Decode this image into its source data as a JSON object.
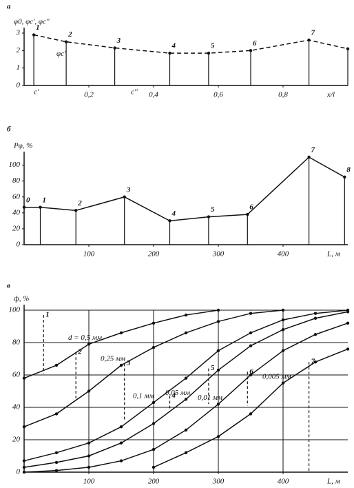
{
  "chart_data": [
    {
      "type": "line",
      "title": "а",
      "ylabel": "φ0, φc', φc''",
      "xlabel": "x/l",
      "xlim": [
        0,
        1
      ],
      "ylim": [
        0,
        3
      ],
      "xticks": [
        {
          "value": 0.2,
          "label": "0,2"
        },
        {
          "value": 0.4,
          "label": "0,4"
        },
        {
          "value": 0.6,
          "label": "0,6"
        },
        {
          "value": 0.8,
          "label": "0,8"
        }
      ],
      "yticks": [
        0,
        1,
        2,
        3
      ],
      "grid": false,
      "stems": true,
      "x": [
        0.03,
        0.13,
        0.28,
        0.45,
        0.57,
        0.7,
        0.88,
        1.0
      ],
      "point_labels": [
        "1",
        "2",
        "3",
        "4",
        "5",
        "6",
        "7",
        null
      ],
      "series": [
        {
          "name": "φ0",
          "color": "#111111",
          "dash": true,
          "values": [
            2.9,
            2.5,
            2.15,
            1.85,
            1.85,
            2.0,
            2.6,
            2.1
          ]
        }
      ],
      "annotations": [
        {
          "text": "c'",
          "x": 0.03,
          "y": -0.4
        },
        {
          "text": "c''",
          "x": 0.33,
          "y": -0.4
        },
        {
          "text": "φc'",
          "x": 0.1,
          "y": 1.8
        }
      ]
    },
    {
      "type": "line",
      "title": "б",
      "ylabel": "Pφ, %",
      "xlabel": "L, м",
      "xlim": [
        0,
        500
      ],
      "ylim": [
        0,
        110
      ],
      "xticks": [
        100,
        200,
        300,
        400
      ],
      "yticks": [
        0,
        20,
        40,
        60,
        80,
        100
      ],
      "grid": false,
      "stems": true,
      "x": [
        0,
        25,
        80,
        155,
        225,
        285,
        345,
        440,
        495
      ],
      "point_labels": [
        "0",
        "1",
        "2",
        "3",
        "4",
        "5",
        "6",
        "7",
        "8"
      ],
      "series": [
        {
          "name": "Pφ",
          "color": "#111111",
          "dash": false,
          "values": [
            47,
            47,
            43,
            60,
            30,
            35,
            38,
            110,
            85
          ]
        }
      ]
    },
    {
      "type": "line",
      "title": "в",
      "ylabel": "ф, %",
      "xlabel": "L, м",
      "xlim": [
        0,
        500
      ],
      "ylim": [
        0,
        100
      ],
      "xticks": [
        100,
        200,
        300,
        400
      ],
      "yticks": [
        0,
        20,
        40,
        60,
        80,
        100
      ],
      "grid": true,
      "stems": false,
      "x": [
        0,
        50,
        100,
        150,
        200,
        250,
        300,
        350,
        400,
        450,
        500
      ],
      "series": [
        {
          "name": "d = 0,5 мм",
          "color": "#111111",
          "dash": false,
          "values": [
            58,
            66,
            79,
            86,
            92,
            97,
            100,
            null,
            null,
            null,
            null
          ]
        },
        {
          "name": "0,25 мм",
          "color": "#111111",
          "dash": false,
          "values": [
            28,
            36,
            50,
            66,
            77,
            86,
            93,
            98,
            100,
            null,
            null
          ]
        },
        {
          "name": "0,1 мм",
          "color": "#111111",
          "dash": false,
          "values": [
            7,
            12,
            18,
            28,
            43,
            58,
            75,
            86,
            94,
            98,
            100
          ]
        },
        {
          "name": "0,05 мм",
          "color": "#111111",
          "dash": false,
          "values": [
            3,
            6,
            10,
            18,
            30,
            45,
            63,
            78,
            88,
            95,
            99
          ]
        },
        {
          "name": "0,01 мм",
          "color": "#111111",
          "dash": false,
          "values": [
            0,
            1,
            3,
            7,
            14,
            26,
            42,
            60,
            75,
            85,
            92
          ]
        },
        {
          "name": "0,005 мм",
          "color": "#111111",
          "dash": false,
          "values": [
            null,
            null,
            null,
            null,
            3,
            12,
            22,
            36,
            55,
            68,
            76
          ]
        }
      ],
      "markers": {
        "x": [
          30,
          80,
          155,
          225,
          285,
          345,
          440
        ],
        "top": [
          97,
          74,
          67,
          47,
          64,
          62,
          68
        ],
        "bottom": [
          61,
          45,
          32,
          39,
          42,
          41,
          0
        ],
        "labels": [
          "1",
          "2",
          "3",
          "4",
          "5",
          "6",
          "7"
        ]
      }
    }
  ]
}
